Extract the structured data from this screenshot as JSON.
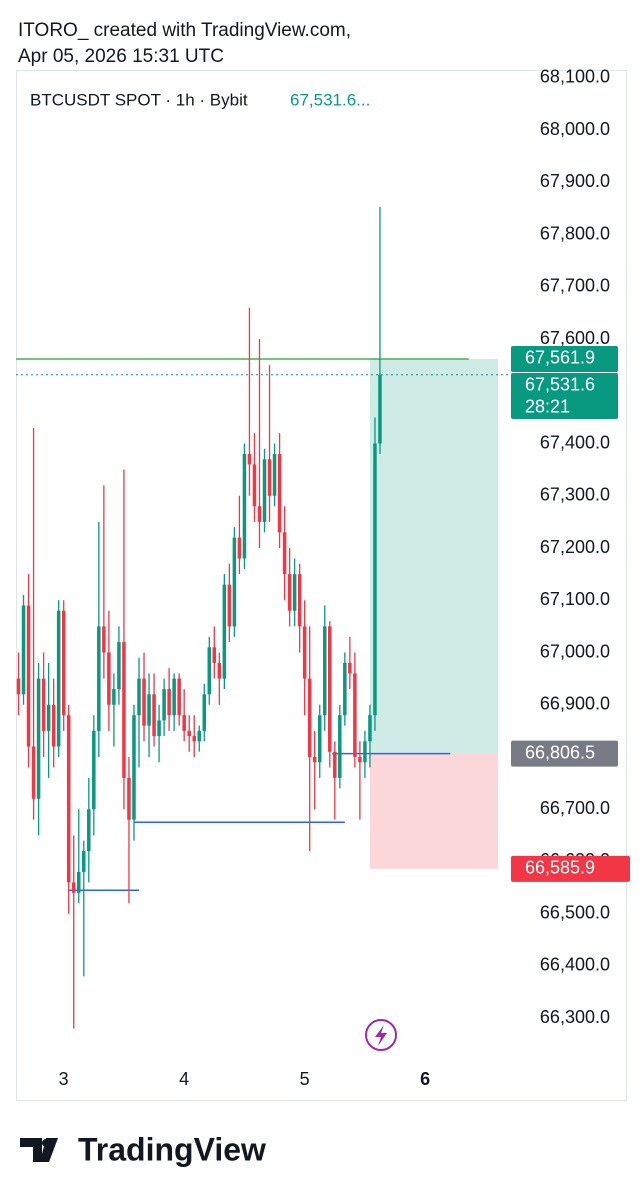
{
  "header": {
    "line1": "ITORO_ created with TradingView.com,",
    "line2": "Apr 05, 2026 15:31 UTC"
  },
  "chart_data": {
    "type": "candlestick",
    "symbol": "BTCUSDT SPOT · 1h · Bybit",
    "last_price_label": "67,531.6...",
    "up_color": "#089981",
    "down_color": "#f23645",
    "open": [
      66950,
      66920,
      67090,
      66820,
      66720,
      66950,
      66850,
      66900,
      66820,
      67080,
      66880,
      66560,
      66540,
      66580,
      66620,
      66700,
      66850,
      67050,
      67000,
      66900,
      66930,
      67020,
      66760,
      66680,
      66880,
      66950,
      66860,
      66920,
      66840,
      66870,
      66930,
      66880,
      66950,
      66880,
      66850,
      66840,
      66830,
      66850,
      66920,
      67010,
      66980,
      66950,
      67130,
      67050,
      67220,
      67180,
      67380,
      67360,
      67280,
      67250,
      67370,
      67300,
      67380,
      67230,
      67150,
      67080,
      67150,
      67050,
      66950,
      66800,
      66790,
      66880,
      67050,
      66810,
      66760,
      66880,
      66980,
      66960,
      66800,
      66790,
      66830,
      66880,
      67400
    ],
    "high": [
      67000,
      67110,
      67150,
      67430,
      66980,
      67000,
      66980,
      66950,
      67100,
      67100,
      66900,
      66650,
      66700,
      66640,
      66760,
      66880,
      67250,
      67320,
      67080,
      66960,
      67050,
      67350,
      66800,
      66900,
      66990,
      67000,
      66960,
      66960,
      66900,
      66950,
      66970,
      66960,
      66960,
      66930,
      66880,
      66880,
      66860,
      66940,
      67030,
      67050,
      67000,
      67150,
      67170,
      67240,
      67300,
      67400,
      67660,
      67420,
      67600,
      67390,
      67550,
      67400,
      67420,
      67280,
      67200,
      67180,
      67170,
      67100,
      67050,
      66850,
      66900,
      67090,
      67060,
      66830,
      66900,
      67000,
      67030,
      67000,
      66830,
      66850,
      66900,
      67450,
      67853
    ],
    "low": [
      66880,
      66900,
      66780,
      66680,
      66650,
      66800,
      66760,
      66780,
      66800,
      66850,
      66500,
      66280,
      66520,
      66380,
      66560,
      66650,
      66800,
      66950,
      66850,
      66820,
      66900,
      66700,
      66520,
      66640,
      66780,
      66830,
      66800,
      66820,
      66790,
      66840,
      66850,
      66850,
      66860,
      66830,
      66810,
      66800,
      66810,
      66830,
      66900,
      66950,
      66900,
      66930,
      67020,
      67030,
      67150,
      67160,
      67300,
      67250,
      67200,
      67230,
      67250,
      67280,
      67200,
      67100,
      67050,
      67050,
      67000,
      66880,
      66620,
      66700,
      66760,
      66850,
      66780,
      66680,
      66740,
      66860,
      66930,
      66780,
      66680,
      66760,
      66780,
      66850,
      67380
    ],
    "close": [
      66920,
      67090,
      66820,
      66720,
      66950,
      66850,
      66900,
      66820,
      67080,
      66880,
      66560,
      66540,
      66580,
      66620,
      66700,
      66850,
      67050,
      67000,
      66900,
      66930,
      67020,
      66760,
      66680,
      66880,
      66950,
      66860,
      66920,
      66840,
      66870,
      66930,
      66880,
      66950,
      66880,
      66850,
      66840,
      66830,
      66850,
      66920,
      67010,
      66980,
      66950,
      67130,
      67050,
      67220,
      67180,
      67380,
      67360,
      67280,
      67250,
      67370,
      67300,
      67380,
      67230,
      67150,
      67080,
      67150,
      67050,
      66950,
      66800,
      66790,
      66880,
      67050,
      66810,
      66760,
      66880,
      66980,
      66960,
      66800,
      66790,
      66830,
      66880,
      67400,
      67531.6
    ],
    "xlim": [
      -0.5,
      97.5
    ],
    "xticks": [
      {
        "value": 9,
        "label": "3"
      },
      {
        "value": 33,
        "label": "4"
      },
      {
        "value": 57,
        "label": "5"
      },
      {
        "value": 81,
        "label": "6"
      }
    ],
    "ylim": [
      66220,
      68115
    ],
    "yticks": [
      {
        "value": 66300,
        "label": "66,300.0"
      },
      {
        "value": 66400,
        "label": "66,400.0"
      },
      {
        "value": 66500,
        "label": "66,500.0"
      },
      {
        "value": 66600,
        "label": "66,600.0"
      },
      {
        "value": 66700,
        "label": "66,700.0"
      },
      {
        "value": 66800,
        "label": "66,800.0"
      },
      {
        "value": 66900,
        "label": "66,900.0"
      },
      {
        "value": 67000,
        "label": "67,000.0"
      },
      {
        "value": 67100,
        "label": "67,100.0"
      },
      {
        "value": 67200,
        "label": "67,200.0"
      },
      {
        "value": 67300,
        "label": "67,300.0"
      },
      {
        "value": 67400,
        "label": "67,400.0"
      },
      {
        "value": 67500,
        "label": "67,500.0"
      },
      {
        "value": 67600,
        "label": "67,600.0"
      },
      {
        "value": 67700,
        "label": "67,700.0"
      },
      {
        "value": 67800,
        "label": "67,800.0"
      },
      {
        "value": 67900,
        "label": "67,900.0"
      },
      {
        "value": 68000,
        "label": "68,000.0"
      },
      {
        "value": 68100,
        "label": "68,100.0"
      }
    ],
    "hlines": [
      {
        "value": 67561.9,
        "x": [
          -0.5,
          89.7
        ],
        "color": "#4caf50"
      },
      {
        "value": 66806.5,
        "x": [
          62.5,
          86
        ],
        "color": "#2962ff"
      },
      {
        "value": 66675,
        "x": [
          23,
          65
        ],
        "color": "#2962ff"
      },
      {
        "value": 66545,
        "x": [
          10,
          24
        ],
        "color": "#2962ff"
      }
    ],
    "position": {
      "target": 67561.9,
      "entry": 66806.5,
      "stop": 66585.9,
      "x": [
        70,
        95.5
      ]
    },
    "price_labels": [
      {
        "value": 67561.9,
        "label": "67,561.9",
        "color": "#089981"
      },
      {
        "value": 67531.6,
        "label": "67,531.6",
        "countdown": "28:21",
        "color": "#089981"
      },
      {
        "value": 66806.5,
        "label": "66,806.5",
        "color": "#787b86"
      },
      {
        "value": 66585.9,
        "label": "66,585.9",
        "color": "#f23645"
      }
    ]
  },
  "footer": {
    "brand": "TradingView"
  }
}
